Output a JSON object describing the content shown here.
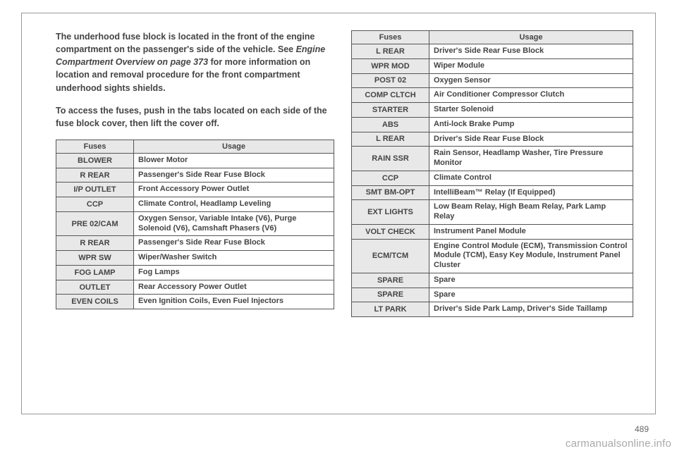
{
  "intro": {
    "p1a": "The underhood fuse block is located in the front of the engine compartment on the passenger's side of the vehicle. See ",
    "p1b": "Engine Compartment Overview on page 373",
    "p1c": " for more information on location and removal procedure for the front compartment underhood sights shields.",
    "p2": "To access the fuses, push in the tabs located on each side of the fuse block cover, then lift the cover off."
  },
  "headers": {
    "fuses": "Fuses",
    "usage": "Usage"
  },
  "left_rows": [
    {
      "f": "BLOWER",
      "u": "Blower Motor"
    },
    {
      "f": "R REAR",
      "u": "Passenger's Side Rear Fuse Block"
    },
    {
      "f": "I/P OUTLET",
      "u": "Front Accessory Power Outlet"
    },
    {
      "f": "CCP",
      "u": "Climate Control, Headlamp Leveling"
    },
    {
      "f": "PRE 02/CAM",
      "u": "Oxygen Sensor, Variable Intake (V6), Purge Solenoid (V6), Camshaft Phasers (V6)"
    },
    {
      "f": "R REAR",
      "u": "Passenger's Side Rear Fuse Block"
    },
    {
      "f": "WPR SW",
      "u": "Wiper/Washer Switch"
    },
    {
      "f": "FOG LAMP",
      "u": "Fog Lamps"
    },
    {
      "f": "OUTLET",
      "u": "Rear Accessory Power Outlet"
    },
    {
      "f": "EVEN COILS",
      "u": "Even Ignition Coils, Even Fuel Injectors"
    }
  ],
  "right_rows": [
    {
      "f": "L REAR",
      "u": "Driver's Side Rear Fuse Block"
    },
    {
      "f": "WPR MOD",
      "u": "Wiper Module"
    },
    {
      "f": "POST 02",
      "u": "Oxygen Sensor"
    },
    {
      "f": "COMP CLTCH",
      "u": "Air Conditioner Compressor Clutch"
    },
    {
      "f": "STARTER",
      "u": "Starter Solenoid"
    },
    {
      "f": "ABS",
      "u": "Anti-lock Brake Pump"
    },
    {
      "f": "L REAR",
      "u": "Driver's Side Rear Fuse Block"
    },
    {
      "f": "RAIN SSR",
      "u": "Rain Sensor, Headlamp Washer, Tire Pressure Monitor"
    },
    {
      "f": "CCP",
      "u": "Climate Control"
    },
    {
      "f": "SMT BM-OPT",
      "u": "IntelliBeam™ Relay (If Equipped)"
    },
    {
      "f": "EXT LIGHTS",
      "u": "Low Beam Relay, High Beam Relay, Park Lamp Relay"
    },
    {
      "f": "VOLT CHECK",
      "u": "Instrument Panel Module"
    },
    {
      "f": "ECM/TCM",
      "u": "Engine Control Module (ECM), Transmission Control Module (TCM), Easy Key Module, Instrument Panel Cluster"
    },
    {
      "f": "SPARE",
      "u": "Spare"
    },
    {
      "f": "SPARE",
      "u": "Spare"
    },
    {
      "f": "LT PARK",
      "u": "Driver's Side Park Lamp, Driver's Side Taillamp"
    }
  ],
  "pagenum": "489",
  "watermark": "carmanualsonline.info"
}
